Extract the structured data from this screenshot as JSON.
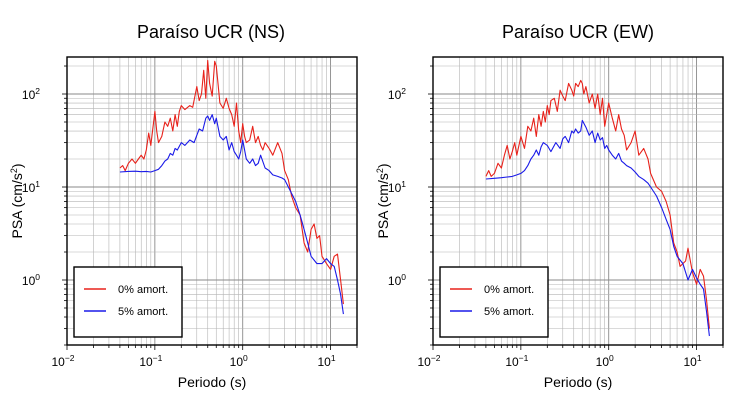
{
  "chart_data": [
    {
      "type": "line",
      "title": "Paraíso UCR (NS)",
      "xlabel": "Periodo (s)",
      "ylabel": "PSA (cm/s",
      "ylabel_sup": "2",
      "ylabel_close": ")",
      "x_scale": "log",
      "y_scale": "log",
      "xlim": [
        0.01,
        20
      ],
      "ylim": [
        0.2,
        250
      ],
      "x_ticks": [
        {
          "value": 0.01,
          "base": "10",
          "exp": "−2"
        },
        {
          "value": 0.1,
          "base": "10",
          "exp": "−1"
        },
        {
          "value": 1,
          "base": "10",
          "exp": "0"
        },
        {
          "value": 10,
          "base": "10",
          "exp": "1"
        }
      ],
      "y_ticks": [
        {
          "value": 1,
          "base": "10",
          "exp": "0"
        },
        {
          "value": 10,
          "base": "10",
          "exp": "1"
        },
        {
          "value": 100,
          "base": "10",
          "exp": "2"
        }
      ],
      "grid": true,
      "legend_position": "bottom-left",
      "series": [
        {
          "name": "0% amort.",
          "color": "#e8221b",
          "x": [
            0.04,
            0.043,
            0.046,
            0.05,
            0.055,
            0.06,
            0.065,
            0.07,
            0.075,
            0.08,
            0.085,
            0.09,
            0.1,
            0.105,
            0.11,
            0.12,
            0.13,
            0.14,
            0.15,
            0.16,
            0.17,
            0.18,
            0.19,
            0.2,
            0.22,
            0.25,
            0.27,
            0.3,
            0.32,
            0.34,
            0.36,
            0.38,
            0.4,
            0.42,
            0.45,
            0.48,
            0.5,
            0.55,
            0.6,
            0.65,
            0.7,
            0.75,
            0.8,
            0.85,
            0.9,
            0.95,
            1.0,
            1.05,
            1.1,
            1.2,
            1.3,
            1.4,
            1.5,
            1.6,
            1.7,
            1.8,
            2.0,
            2.2,
            2.5,
            2.8,
            3.0,
            3.3,
            3.6,
            4.0,
            4.5,
            5.0,
            5.5,
            6.0,
            6.5,
            7.0,
            7.5,
            8.0,
            9.0,
            10.0,
            11.0,
            12.0,
            13.0,
            14.0
          ],
          "y": [
            16,
            17,
            15,
            18,
            20,
            18,
            20,
            22,
            20,
            25,
            38,
            28,
            65,
            40,
            30,
            35,
            50,
            45,
            55,
            40,
            60,
            45,
            65,
            75,
            68,
            75,
            72,
            120,
            85,
            100,
            180,
            90,
            230,
            130,
            95,
            225,
            200,
            80,
            70,
            90,
            70,
            60,
            45,
            80,
            40,
            30,
            48,
            35,
            30,
            32,
            45,
            30,
            35,
            28,
            25,
            30,
            26,
            22,
            30,
            23,
            15,
            12,
            8,
            6,
            5,
            2.5,
            2,
            3.5,
            4,
            2.8,
            3,
            1.8,
            1.5,
            1.3,
            1.8,
            1.9,
            1.0,
            0.55
          ]
        },
        {
          "name": "5% amort.",
          "color": "#1a1ae8",
          "x": [
            0.04,
            0.05,
            0.06,
            0.07,
            0.08,
            0.09,
            0.1,
            0.11,
            0.12,
            0.13,
            0.14,
            0.15,
            0.16,
            0.17,
            0.18,
            0.2,
            0.22,
            0.25,
            0.28,
            0.3,
            0.32,
            0.35,
            0.38,
            0.4,
            0.42,
            0.45,
            0.48,
            0.5,
            0.55,
            0.6,
            0.65,
            0.7,
            0.75,
            0.8,
            0.85,
            0.9,
            0.95,
            1.0,
            1.1,
            1.2,
            1.3,
            1.4,
            1.5,
            1.6,
            1.8,
            2.0,
            2.2,
            2.5,
            2.8,
            3.0,
            3.5,
            4.0,
            4.5,
            5.0,
            5.5,
            6.0,
            7.0,
            8.0,
            9.0,
            10.0,
            11.0,
            12.0,
            13.0,
            14.0
          ],
          "y": [
            14.5,
            14.7,
            14.8,
            14.6,
            14.7,
            14.5,
            15,
            15.5,
            17,
            19,
            20,
            23,
            22,
            26,
            25,
            30,
            28,
            32,
            30,
            36,
            42,
            40,
            55,
            58,
            52,
            60,
            48,
            55,
            35,
            32,
            35,
            25,
            30,
            24,
            22,
            20,
            24,
            32,
            20,
            18,
            20,
            17,
            18,
            22,
            16,
            15,
            13.5,
            13,
            12.5,
            12,
            9,
            7,
            5,
            3.5,
            2.5,
            1.8,
            1.5,
            1.5,
            1.7,
            1.5,
            1.4,
            1.0,
            0.7,
            0.43
          ]
        }
      ]
    },
    {
      "type": "line",
      "title": "Paraíso UCR (EW)",
      "xlabel": "Periodo (s)",
      "ylabel": "PSA (cm/s",
      "ylabel_sup": "2",
      "ylabel_close": ")",
      "x_scale": "log",
      "y_scale": "log",
      "xlim": [
        0.01,
        20
      ],
      "ylim": [
        0.2,
        250
      ],
      "x_ticks": [
        {
          "value": 0.01,
          "base": "10",
          "exp": "−2"
        },
        {
          "value": 0.1,
          "base": "10",
          "exp": "−1"
        },
        {
          "value": 1,
          "base": "10",
          "exp": "0"
        },
        {
          "value": 10,
          "base": "10",
          "exp": "1"
        }
      ],
      "y_ticks": [
        {
          "value": 1,
          "base": "10",
          "exp": "0"
        },
        {
          "value": 10,
          "base": "10",
          "exp": "1"
        },
        {
          "value": 100,
          "base": "10",
          "exp": "2"
        }
      ],
      "grid": true,
      "legend_position": "bottom-left",
      "series": [
        {
          "name": "0% amort.",
          "color": "#e8221b",
          "x": [
            0.04,
            0.043,
            0.046,
            0.05,
            0.055,
            0.06,
            0.065,
            0.07,
            0.075,
            0.08,
            0.085,
            0.09,
            0.1,
            0.11,
            0.12,
            0.13,
            0.14,
            0.15,
            0.16,
            0.17,
            0.18,
            0.19,
            0.2,
            0.21,
            0.22,
            0.24,
            0.26,
            0.28,
            0.3,
            0.32,
            0.35,
            0.38,
            0.4,
            0.42,
            0.45,
            0.48,
            0.5,
            0.52,
            0.55,
            0.6,
            0.65,
            0.7,
            0.75,
            0.8,
            0.85,
            0.9,
            0.95,
            1.0,
            1.1,
            1.2,
            1.3,
            1.4,
            1.5,
            1.6,
            1.8,
            2.0,
            2.2,
            2.5,
            2.8,
            3.0,
            3.5,
            4.0,
            4.5,
            5.0,
            5.5,
            6.0,
            6.5,
            7.0,
            7.5,
            8.0,
            9.0,
            10.0,
            11.0,
            12.0,
            13.0,
            14.0
          ],
          "y": [
            13,
            15,
            13,
            14,
            18,
            16,
            22,
            28,
            20,
            24,
            30,
            22,
            35,
            26,
            45,
            40,
            55,
            35,
            60,
            45,
            65,
            50,
            75,
            60,
            85,
            90,
            65,
            110,
            95,
            85,
            130,
            110,
            95,
            130,
            120,
            140,
            130,
            100,
            120,
            80,
            100,
            70,
            100,
            60,
            90,
            45,
            60,
            80,
            55,
            40,
            60,
            42,
            36,
            25,
            30,
            40,
            22,
            26,
            20,
            14,
            10,
            9,
            7,
            5,
            2.5,
            2.0,
            1.4,
            1.5,
            1.6,
            2.2,
            1.2,
            0.9,
            1.3,
            1.1,
            0.6,
            0.3
          ]
        },
        {
          "name": "5% amort.",
          "color": "#1a1ae8",
          "x": [
            0.04,
            0.05,
            0.06,
            0.07,
            0.08,
            0.09,
            0.1,
            0.11,
            0.12,
            0.13,
            0.14,
            0.15,
            0.16,
            0.17,
            0.18,
            0.2,
            0.22,
            0.25,
            0.28,
            0.3,
            0.32,
            0.35,
            0.38,
            0.4,
            0.42,
            0.45,
            0.48,
            0.5,
            0.55,
            0.6,
            0.65,
            0.7,
            0.75,
            0.8,
            0.85,
            0.9,
            0.95,
            1.0,
            1.1,
            1.2,
            1.3,
            1.4,
            1.5,
            1.6,
            1.8,
            2.0,
            2.2,
            2.5,
            2.8,
            3.0,
            3.5,
            4.0,
            4.5,
            5.0,
            5.5,
            6.0,
            7.0,
            8.0,
            9.0,
            10.0,
            11.0,
            12.0,
            13.0,
            14.0
          ],
          "y": [
            12.2,
            12.4,
            12.6,
            12.8,
            13,
            13.5,
            14,
            15,
            17,
            20,
            22,
            25,
            22,
            27,
            30,
            28,
            24,
            30,
            26,
            33,
            35,
            30,
            40,
            38,
            42,
            38,
            40,
            52,
            44,
            36,
            40,
            30,
            38,
            32,
            34,
            26,
            28,
            25,
            22,
            20,
            23,
            19,
            18,
            17,
            16,
            14.5,
            13,
            12,
            11,
            10,
            8,
            6,
            4.5,
            3.5,
            2.3,
            1.8,
            1.5,
            1.0,
            1.3,
            1.05,
            0.9,
            0.8,
            0.45,
            0.25
          ]
        }
      ]
    }
  ]
}
